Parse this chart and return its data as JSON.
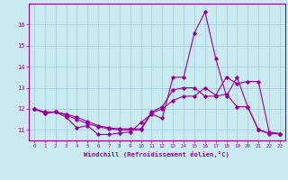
{
  "xlabel": "Windchill (Refroidissement éolien,°C)",
  "background_color": "#c8eaf0",
  "line_color": "#990099",
  "grid_color": "#a0c8d8",
  "xlim": [
    -0.5,
    23.5
  ],
  "ylim": [
    10.5,
    17.0
  ],
  "yticks": [
    11,
    12,
    13,
    14,
    15,
    16
  ],
  "xticks": [
    0,
    1,
    2,
    3,
    4,
    5,
    6,
    7,
    8,
    9,
    10,
    11,
    12,
    13,
    14,
    15,
    16,
    17,
    18,
    19,
    20,
    21,
    22,
    23
  ],
  "line1_x": [
    0,
    1,
    2,
    3,
    4,
    5,
    6,
    7,
    8,
    9,
    10,
    11,
    12,
    13,
    14,
    15,
    16,
    17,
    18,
    19,
    20,
    21,
    22,
    23
  ],
  "line1_y": [
    12.0,
    11.8,
    11.85,
    11.6,
    11.1,
    11.2,
    10.78,
    10.78,
    10.85,
    10.9,
    11.35,
    11.75,
    11.55,
    13.5,
    13.5,
    15.6,
    16.6,
    14.4,
    12.6,
    13.5,
    12.1,
    11.0,
    10.82,
    10.82
  ],
  "line2_x": [
    0,
    1,
    2,
    3,
    4,
    5,
    6,
    7,
    8,
    9,
    10,
    11,
    12,
    13,
    14,
    15,
    16,
    17,
    18,
    19,
    20,
    21,
    22,
    23
  ],
  "line2_y": [
    12.0,
    11.8,
    11.85,
    11.7,
    11.5,
    11.3,
    11.15,
    11.05,
    11.0,
    11.0,
    11.0,
    11.8,
    12.0,
    12.4,
    12.6,
    12.6,
    13.0,
    12.65,
    13.5,
    13.2,
    13.3,
    13.3,
    10.9,
    10.82
  ],
  "line3_x": [
    0,
    1,
    2,
    3,
    4,
    5,
    6,
    7,
    8,
    9,
    10,
    11,
    12,
    13,
    14,
    15,
    16,
    17,
    18,
    19,
    20,
    21,
    22,
    23
  ],
  "line3_y": [
    12.0,
    11.85,
    11.85,
    11.75,
    11.6,
    11.4,
    11.2,
    11.1,
    11.05,
    11.05,
    11.05,
    11.85,
    12.1,
    12.9,
    13.0,
    13.0,
    12.6,
    12.6,
    12.7,
    12.1,
    12.1,
    11.0,
    10.85,
    10.82
  ]
}
